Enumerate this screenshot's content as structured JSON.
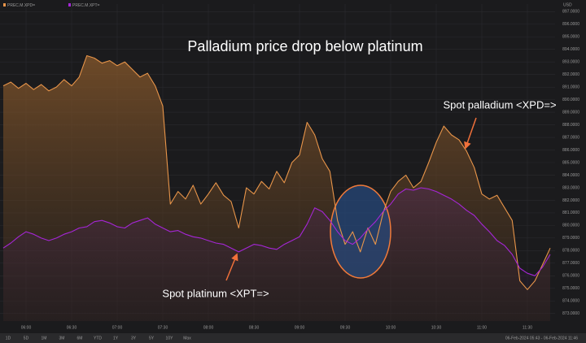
{
  "chart_data": {
    "type": "line",
    "title": "Palladium price drop below platinum",
    "annotations": [
      "Spot palladium <XPD=>",
      "Spot platinum <XPT=>"
    ],
    "y_unit": "USD",
    "range_buttons": [
      "1D",
      "5D",
      "1M",
      "3M",
      "6M",
      "YTD",
      "1Y",
      "3Y",
      "5Y",
      "10Y",
      "Max"
    ],
    "date_range": "06-Feb-2024 05:43 - 06-Feb-2024 11:46",
    "categories": [
      null,
      null,
      null,
      "06:00",
      null,
      null,
      null,
      null,
      null,
      "06:30",
      null,
      null,
      null,
      null,
      null,
      "07:00",
      null,
      null,
      null,
      null,
      null,
      "07:30",
      null,
      null,
      null,
      null,
      null,
      "08:00",
      null,
      null,
      null,
      null,
      null,
      "08:30",
      null,
      null,
      null,
      null,
      null,
      "09:00",
      null,
      null,
      null,
      null,
      null,
      "09:30",
      null,
      null,
      null,
      null,
      null,
      "10:00",
      null,
      null,
      null,
      null,
      null,
      "10:30",
      null,
      null,
      null,
      null,
      null,
      "11:00",
      null,
      null,
      null,
      null,
      null,
      "11:30",
      null,
      null,
      null
    ],
    "series": [
      {
        "name": "PREC.M.XPD=",
        "color": "#e8954a",
        "fill": true,
        "values": [
          891.1,
          891.4,
          890.9,
          891.3,
          890.8,
          891.2,
          890.7,
          891.0,
          891.6,
          891.1,
          891.8,
          893.5,
          893.3,
          892.9,
          893.1,
          892.7,
          893.0,
          892.4,
          891.8,
          892.1,
          891.1,
          889.5,
          881.7,
          882.7,
          882.1,
          883.2,
          881.7,
          882.5,
          883.4,
          882.4,
          881.9,
          879.8,
          883.0,
          882.5,
          883.5,
          882.9,
          884.3,
          883.4,
          885.0,
          885.6,
          888.2,
          887.2,
          885.3,
          884.3,
          880.4,
          878.5,
          879.5,
          877.9,
          879.8,
          878.5,
          881.0,
          882.7,
          883.5,
          884.0,
          883.0,
          883.5,
          885.0,
          886.6,
          887.9,
          887.2,
          886.8,
          885.9,
          884.6,
          882.5,
          882.1,
          882.4,
          881.4,
          880.4,
          875.6,
          874.9,
          875.6,
          876.9,
          878.2
        ]
      },
      {
        "name": "PREC.M.XPT=",
        "color": "#a526d6",
        "fill": true,
        "values": [
          878.2,
          878.6,
          879.1,
          879.5,
          879.3,
          879.0,
          878.8,
          879.0,
          879.3,
          879.5,
          879.8,
          879.9,
          880.3,
          880.4,
          880.2,
          879.9,
          879.8,
          880.2,
          880.4,
          880.6,
          880.1,
          879.8,
          879.5,
          879.6,
          879.3,
          879.1,
          879.0,
          878.8,
          878.6,
          878.5,
          878.2,
          877.9,
          878.2,
          878.5,
          878.4,
          878.2,
          878.1,
          878.5,
          878.8,
          879.1,
          880.1,
          881.4,
          881.1,
          880.4,
          879.5,
          878.8,
          878.5,
          879.0,
          879.7,
          880.3,
          881.1,
          881.7,
          882.5,
          882.9,
          882.8,
          883.0,
          882.9,
          882.7,
          882.4,
          882.1,
          881.7,
          881.2,
          880.8,
          880.1,
          879.5,
          878.8,
          878.4,
          877.7,
          876.6,
          876.2,
          876.0,
          876.7,
          877.7
        ]
      }
    ],
    "ylim": [
      872.4,
      897.6
    ],
    "yticks": [
      {
        "value": 873,
        "label": "873.0000"
      },
      {
        "value": 874,
        "label": "874.0000"
      },
      {
        "value": 875,
        "label": "875.0000"
      },
      {
        "value": 876,
        "label": "876.0000"
      },
      {
        "value": 877,
        "label": "877.0000"
      },
      {
        "value": 878,
        "label": "878.0000"
      },
      {
        "value": 879,
        "label": "879.0000"
      },
      {
        "value": 880,
        "label": "880.0000"
      },
      {
        "value": 881,
        "label": "881.0000"
      },
      {
        "value": 882,
        "label": "882.0000"
      },
      {
        "value": 883,
        "label": "883.0000"
      },
      {
        "value": 884,
        "label": "884.0000"
      },
      {
        "value": 885,
        "label": "885.0000"
      },
      {
        "value": 886,
        "label": "886.0000"
      },
      {
        "value": 887,
        "label": "887.0000"
      },
      {
        "value": 888,
        "label": "888.0000"
      },
      {
        "value": 889,
        "label": "889.0000"
      },
      {
        "value": 890,
        "label": "890.0000"
      },
      {
        "value": 891,
        "label": "891.0000"
      },
      {
        "value": 892,
        "label": "892.0000"
      },
      {
        "value": 893,
        "label": "893.0000"
      },
      {
        "value": 894,
        "label": "894.0000"
      },
      {
        "value": 895,
        "label": "895.0000"
      },
      {
        "value": 896,
        "label": "896.0000"
      },
      {
        "value": 897,
        "label": "897.0000"
      }
    ],
    "grid": true
  }
}
